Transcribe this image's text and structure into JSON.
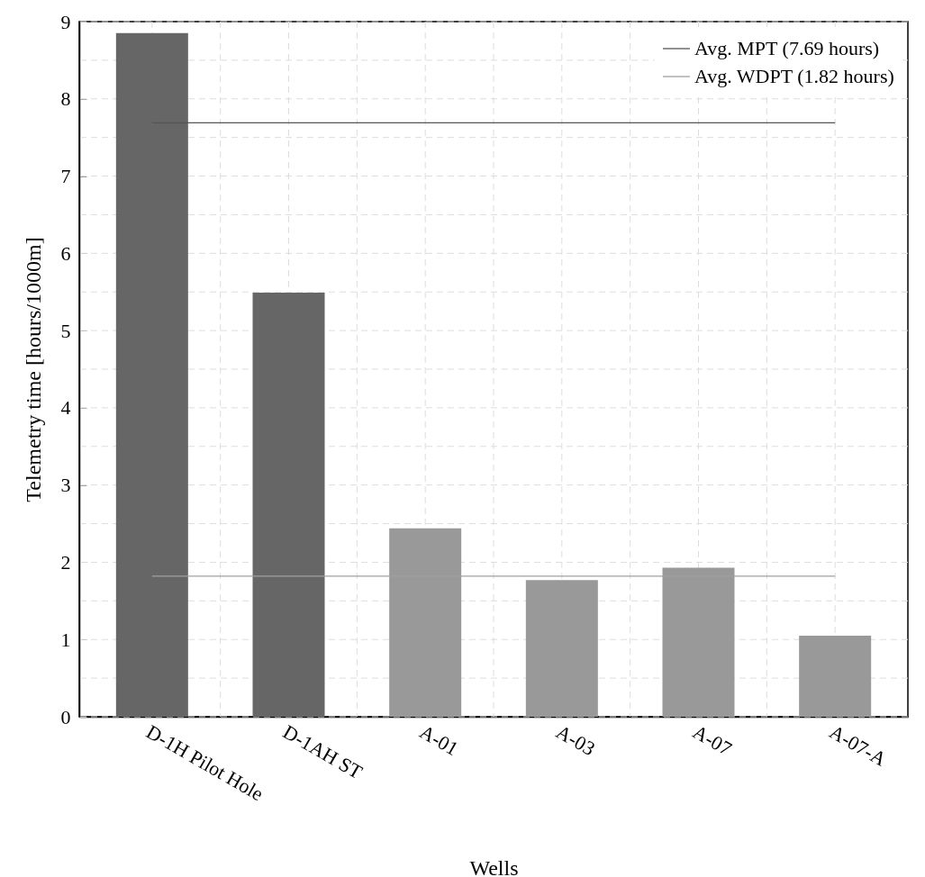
{
  "chart_data": {
    "type": "bar",
    "xlabel": "Wells",
    "ylabel": "Telemetry time [hours/1000m]",
    "categories": [
      "D-1H Pilot Hole",
      "D-1AH ST",
      "A-01",
      "A-03",
      "A-07",
      "A-07-A"
    ],
    "values": [
      8.85,
      5.49,
      2.44,
      1.77,
      1.93,
      1.05
    ],
    "colors": [
      "#666666",
      "#666666",
      "#999999",
      "#999999",
      "#999999",
      "#999999"
    ],
    "ylim": [
      0,
      9
    ],
    "yticks": [
      0,
      1,
      2,
      3,
      4,
      5,
      6,
      7,
      8,
      9
    ],
    "grid": true,
    "legend": "top right",
    "ref_lines": [
      {
        "axis": "y",
        "value": 7.69,
        "label": "Avg. MPT (7.69 hours)",
        "color": "#555555"
      },
      {
        "axis": "y",
        "value": 1.82,
        "label": "Avg. WDPT (1.82 hours)",
        "color": "#a0a0a0"
      }
    ]
  }
}
